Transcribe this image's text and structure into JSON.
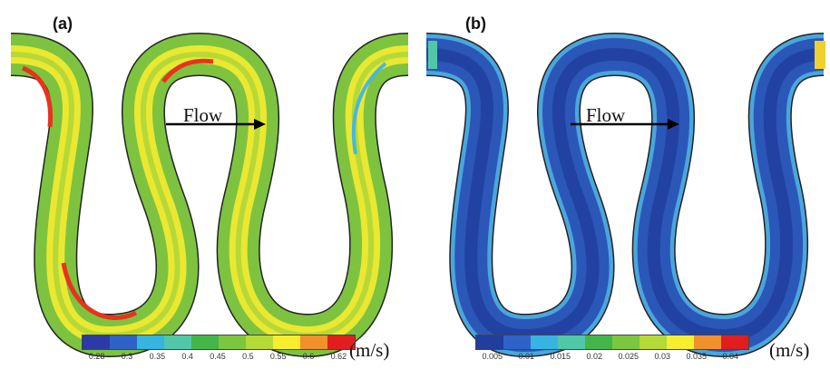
{
  "panels": [
    {
      "label": "(a)",
      "flow_label": "Flow",
      "unit": "(m/s)",
      "colorbar": {
        "colors": [
          "#2b3aa6",
          "#2e62c8",
          "#37b4e0",
          "#52c7a7",
          "#43b649",
          "#7dc63f",
          "#b5d937",
          "#f6ee2e",
          "#f0912b",
          "#e11e1e"
        ],
        "tick_labels": [
          "0.28",
          "0.3",
          "0.35",
          "0.4",
          "0.45",
          "0.5",
          "0.55",
          "0.6",
          "0.62"
        ]
      }
    },
    {
      "label": "(b)",
      "flow_label": "Flow",
      "unit": "(m/s)",
      "colorbar": {
        "colors": [
          "#213d9e",
          "#2e62c8",
          "#37b4e0",
          "#52c7a7",
          "#43b649",
          "#7dc63f",
          "#b5d937",
          "#f6ee2e",
          "#f0912b",
          "#e11e1e"
        ],
        "tick_labels": [
          "0.005",
          "0.01",
          "0.015",
          "0.02",
          "0.025",
          "0.03",
          "0.035",
          "0.04"
        ]
      }
    }
  ],
  "colors": {
    "panel_a_base": "#7dc340",
    "panel_a_high": "#f6ec30",
    "panel_a_peak": "#e8321e",
    "panel_b_base": "#2b57b8",
    "panel_b_wall": "#4aa6dd"
  },
  "icons": {
    "flow_arrow": "right-arrow-icon"
  }
}
